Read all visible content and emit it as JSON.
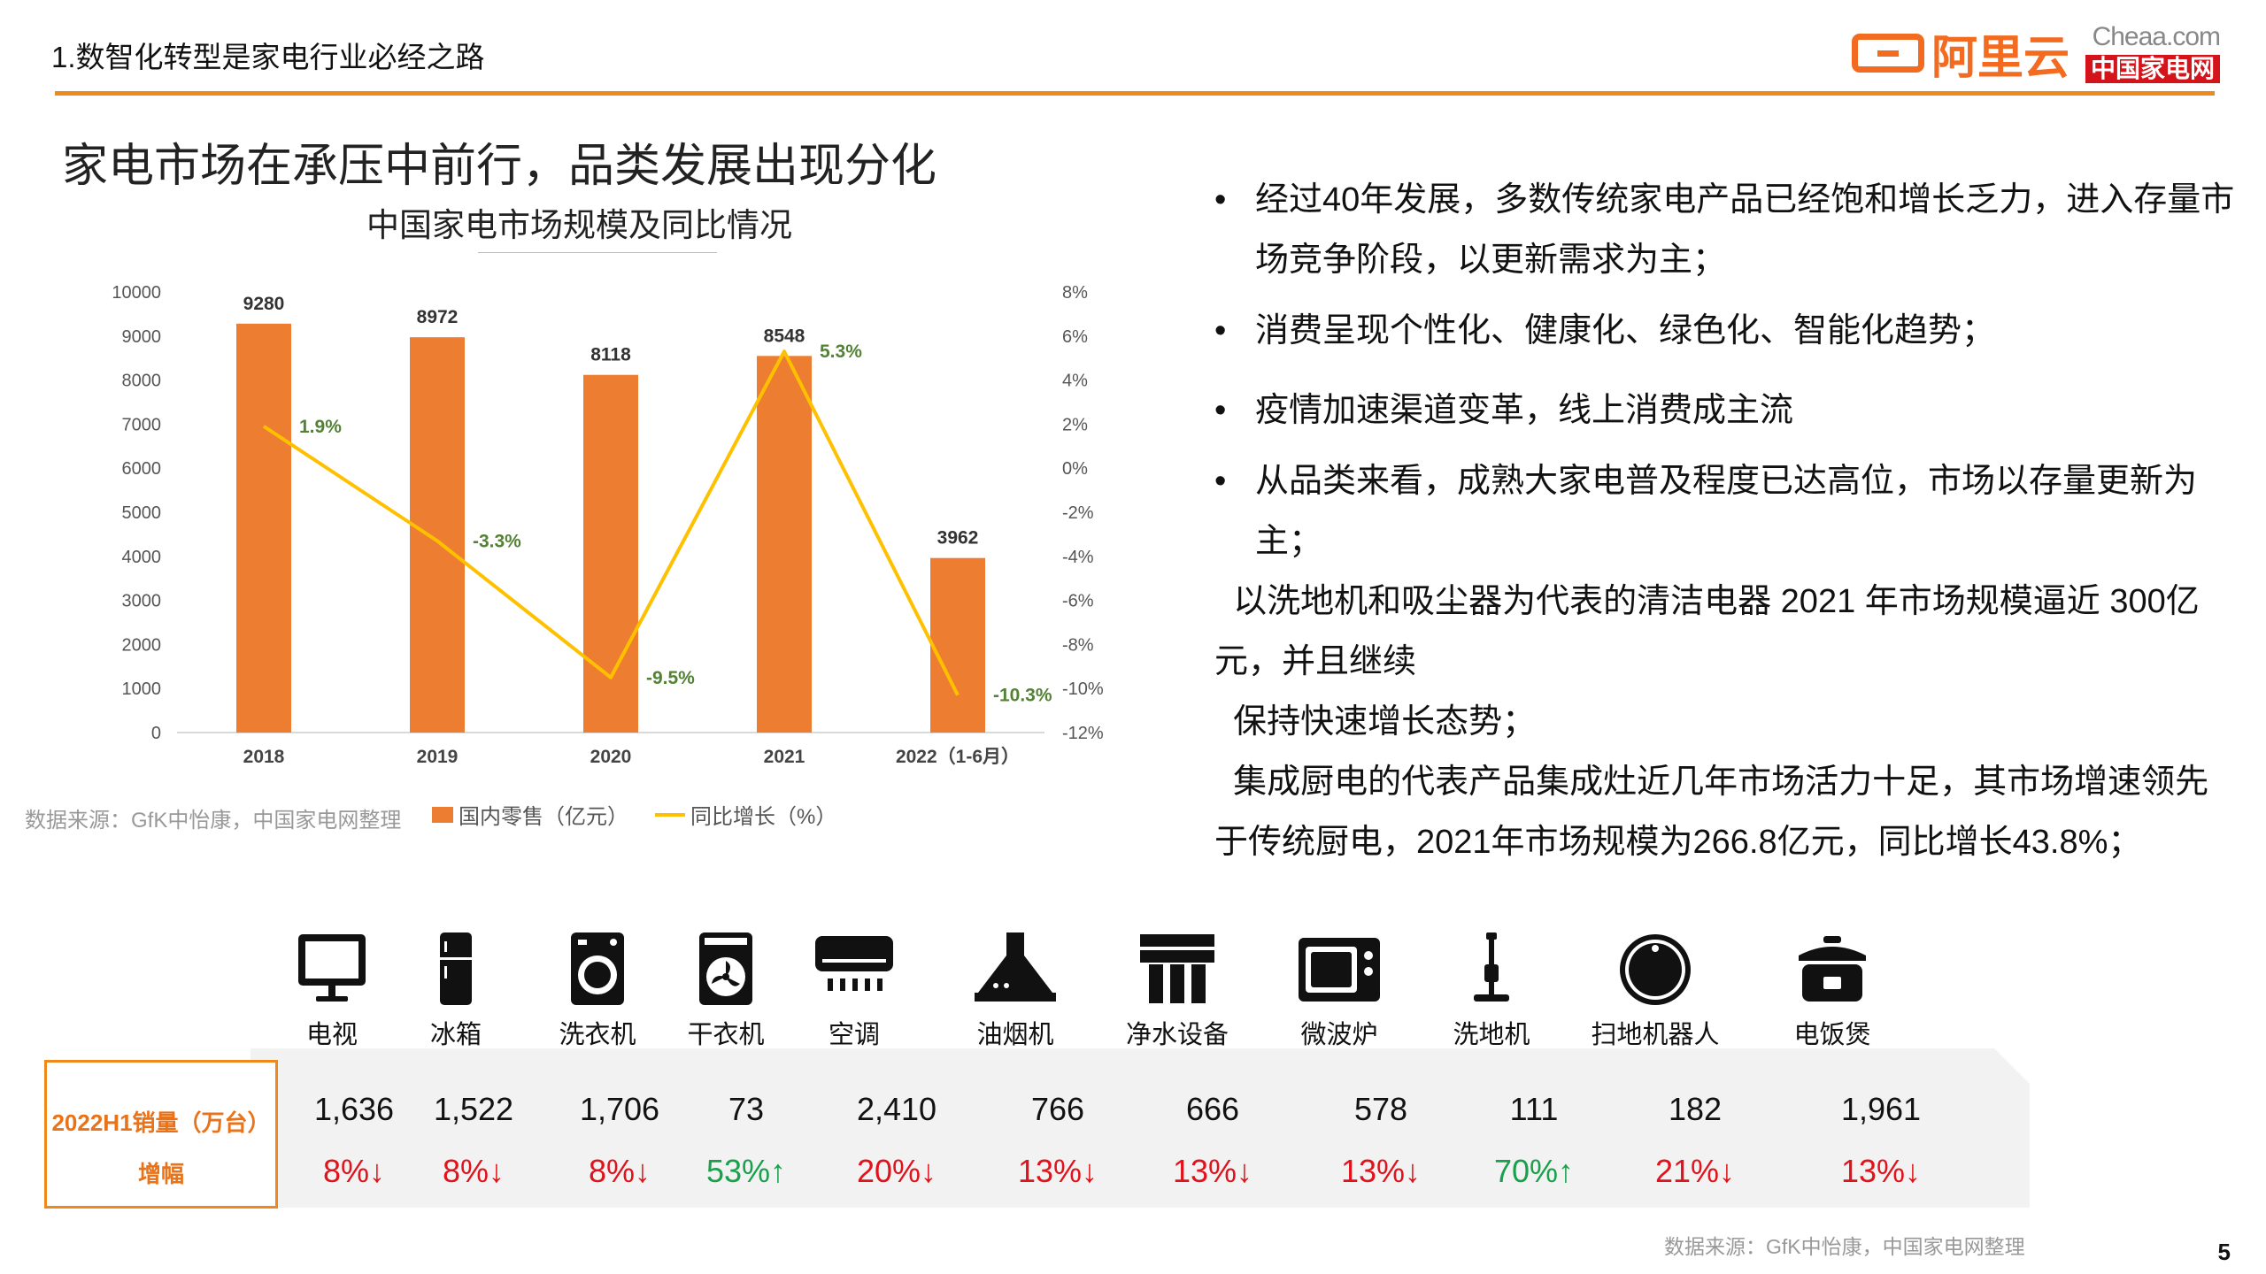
{
  "header": {
    "title": "1.数智化转型是家电行业必经之路"
  },
  "logos": {
    "aliyun_text": "阿里云",
    "cheaa_en": "Cheaa.com",
    "cheaa_cn": "中国家电网"
  },
  "section_title": "家电市场在承压中前行，品类发展出现分化",
  "colors": {
    "accent": "#ee8a1c",
    "bar": "#ed7d31",
    "line": "#ffc000",
    "down": "#e0121b",
    "up": "#19a04b"
  },
  "chart_data": {
    "type": "bar",
    "title": "中国家电市场规模及同比情况",
    "categories": [
      "2018",
      "2019",
      "2020",
      "2021",
      "2022（1-6月）"
    ],
    "series": [
      {
        "name": "国内零售（亿元）",
        "type": "bar",
        "axis": "left",
        "values": [
          9280,
          8972,
          8118,
          8548,
          3962
        ],
        "labels": [
          "9280",
          "8972",
          "8118",
          "8548",
          "3962"
        ]
      },
      {
        "name": "同比增长（%）",
        "type": "line",
        "axis": "right",
        "values": [
          1.9,
          -3.3,
          -9.5,
          5.3,
          -10.3
        ],
        "labels": [
          "1.9%",
          "-3.3%",
          "-9.5%",
          "5.3%",
          "-10.3%"
        ]
      }
    ],
    "ylim": [
      0,
      10000
    ],
    "y_ticks": [
      "10000",
      "9000",
      "8000",
      "7000",
      "6000",
      "5000",
      "4000",
      "3000",
      "2000",
      "1000",
      "0"
    ],
    "y2lim": [
      -12,
      8
    ],
    "y2_ticks": [
      "8%",
      "6%",
      "4%",
      "2%",
      "0%",
      "-2%",
      "-4%",
      "-6%",
      "-8%",
      "-10%",
      "-12%"
    ],
    "grid": false,
    "legend": "bottom"
  },
  "chart_source": "数据来源：GfK中怡康，中国家电网整理",
  "legend": {
    "bar": "国内零售（亿元）",
    "line": "同比增长（%）"
  },
  "bullets": [
    {
      "text": "经过40年发展，多数传统家电产品已经饱和增长乏力，进入存量市",
      "cont": "场竞争阶段，以更新需求为主；"
    },
    {
      "text": "消费呈现个性化、健康化、绿色化、智能化趋势；"
    },
    {
      "text": "疫情加速渠道变革，线上消费成主流"
    },
    {
      "text": "从品类来看，成熟大家电普及程度已达高位，市场以存量更新为主；"
    }
  ],
  "paragraphs": [
    "  以洗地机和吸尘器为代表的清洁电器 2021 年市场规模逼近 300亿",
    "元，并且继续",
    "  保持快速增长态势；",
    "  集成厨电的代表产品集成灶近几年市场活力十足，其市场增速领先",
    "于传统厨电，2021年市场规模为266.8亿元，同比增长43.8%；"
  ],
  "row_labels": {
    "sales": "2022H1销量（万台）",
    "growth": "增幅"
  },
  "appliances": [
    {
      "name": "电视",
      "icon": "tv-icon",
      "sales": "1,636",
      "growth": "8%↓",
      "dir": "down"
    },
    {
      "name": "冰箱",
      "icon": "fridge-icon",
      "sales": "1,522",
      "growth": "8%↓",
      "dir": "down"
    },
    {
      "name": "洗衣机",
      "icon": "washer-icon",
      "sales": "1,706",
      "growth": "8%↓",
      "dir": "down"
    },
    {
      "name": "干衣机",
      "icon": "dryer-icon",
      "sales": "73",
      "growth": "53%↑",
      "dir": "up"
    },
    {
      "name": "空调",
      "icon": "air-conditioner-icon",
      "sales": "2,410",
      "growth": "20%↓",
      "dir": "down"
    },
    {
      "name": "油烟机",
      "icon": "range-hood-icon",
      "sales": "766",
      "growth": "13%↓",
      "dir": "down"
    },
    {
      "name": "净水设备",
      "icon": "water-purifier-icon",
      "sales": "666",
      "growth": "13%↓",
      "dir": "down"
    },
    {
      "name": "微波炉",
      "icon": "microwave-icon",
      "sales": "578",
      "growth": "13%↓",
      "dir": "down"
    },
    {
      "name": "洗地机",
      "icon": "floor-washer-icon",
      "sales": "111",
      "growth": "70%↑",
      "dir": "up"
    },
    {
      "name": "扫地机器人",
      "icon": "robot-vacuum-icon",
      "sales": "182",
      "growth": "21%↓",
      "dir": "down"
    },
    {
      "name": "电饭煲",
      "icon": "rice-cooker-icon",
      "sales": "1,961",
      "growth": "13%↓",
      "dir": "down"
    }
  ],
  "bottom_source": "数据来源：GfK中怡康，中国家电网整理",
  "page_number": "5"
}
